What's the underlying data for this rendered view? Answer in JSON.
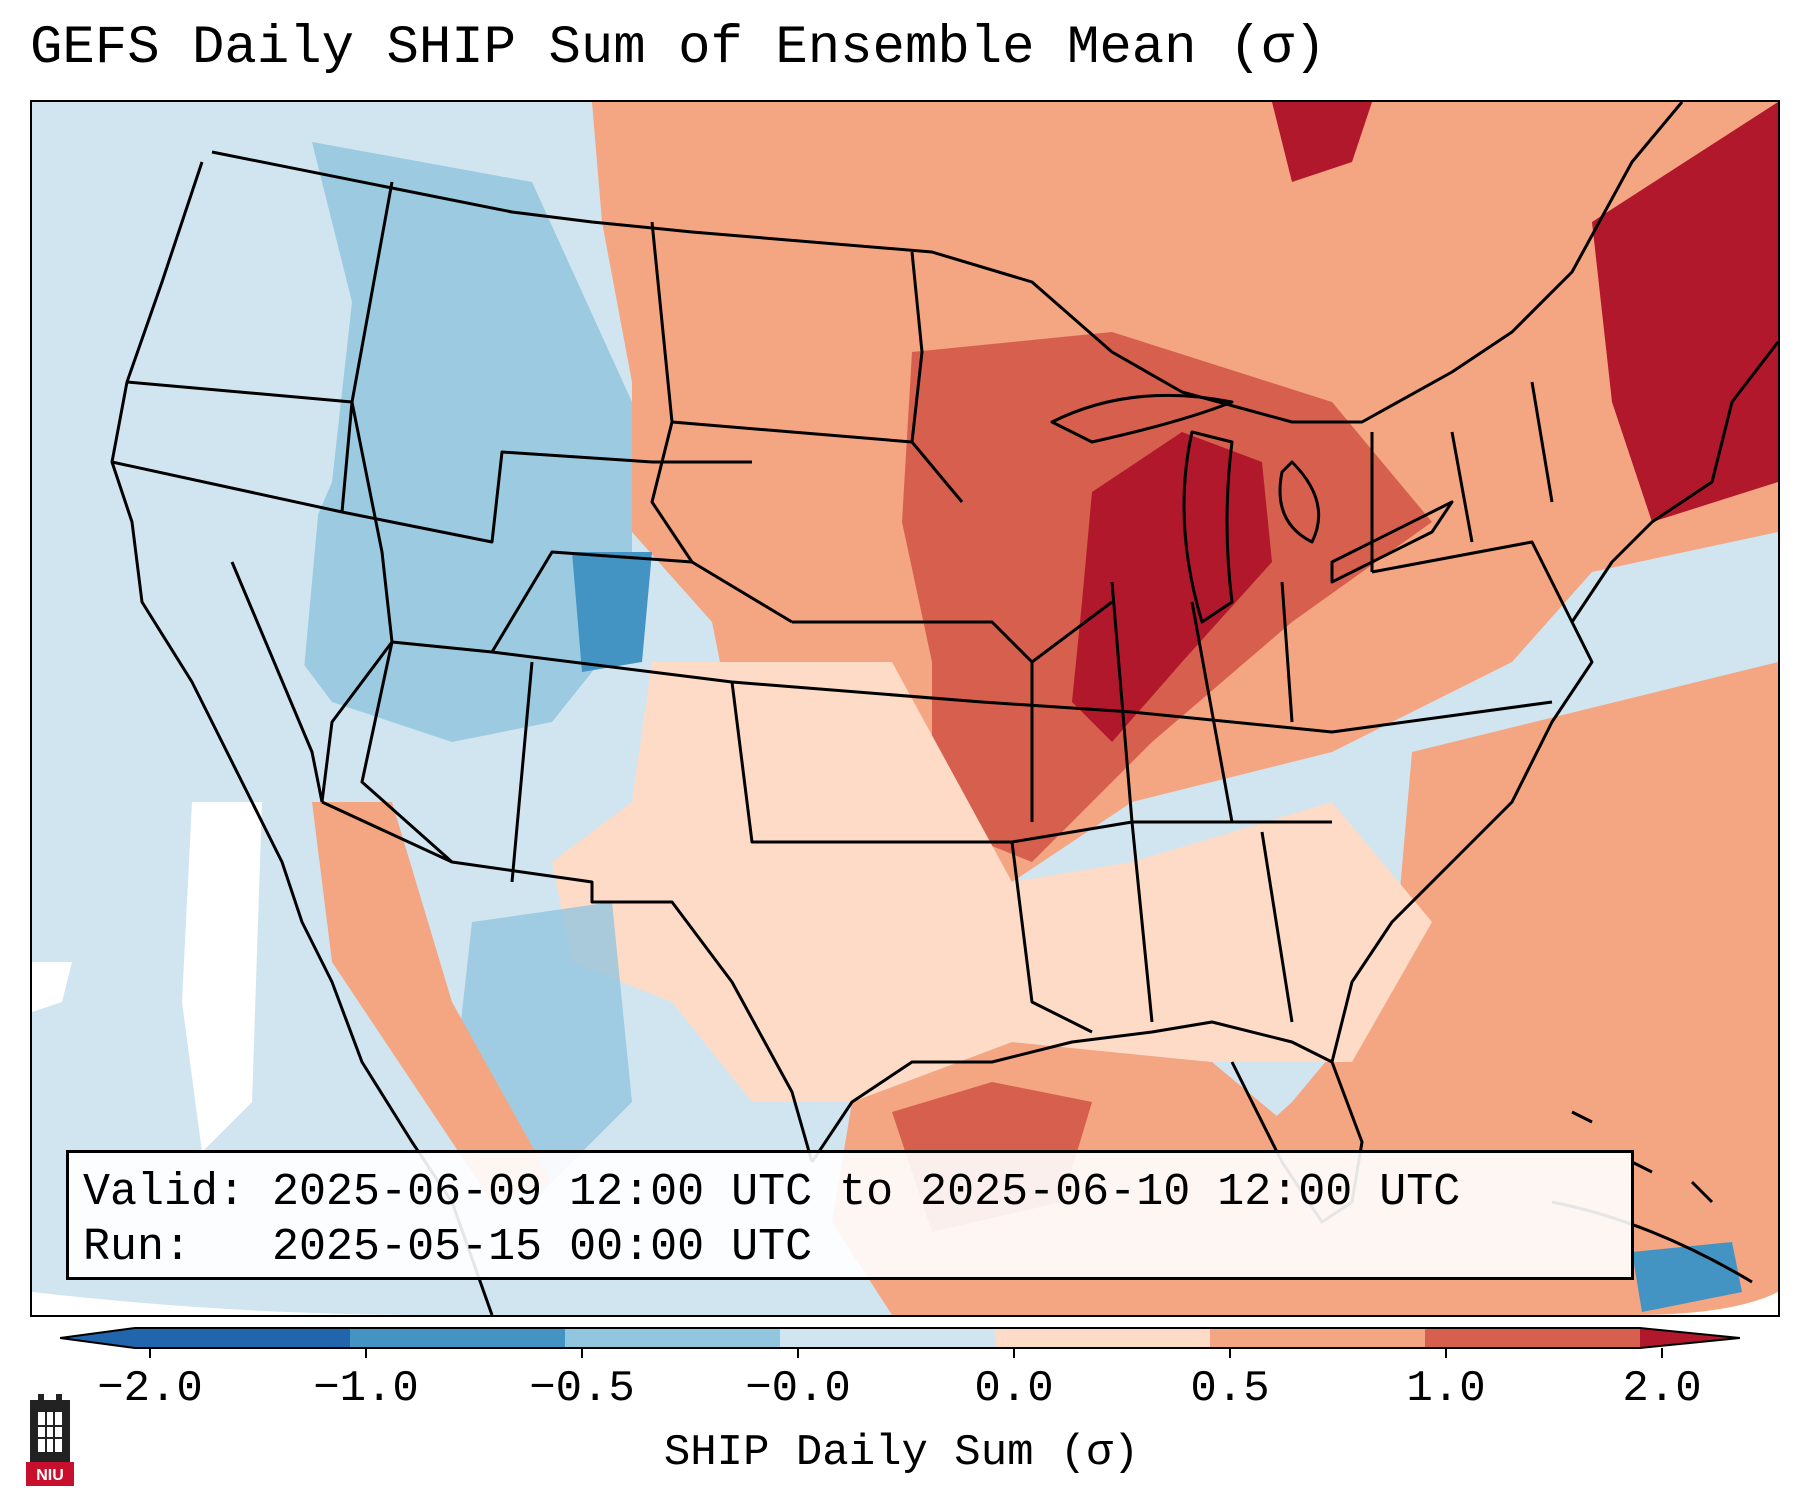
{
  "title": "GEFS Daily SHIP Sum of Ensemble Mean (σ)",
  "info": {
    "valid_label": "Valid:",
    "valid_value": "2025-06-09 12:00 UTC to 2025-06-10 12:00 UTC",
    "run_label": "Run:",
    "run_value": "2025-05-15 00:00 UTC"
  },
  "colorbar": {
    "label": "SHIP Daily Sum (σ)",
    "ticks": [
      "−2.0",
      "−1.0",
      "−0.5",
      "−0.0",
      "0.0",
      "0.5",
      "1.0",
      "2.0"
    ],
    "colors": [
      "#2166ac",
      "#4393c3",
      "#92c5de",
      "#d1e5f0",
      "#fddbc7",
      "#f4a582",
      "#d6604d",
      "#b2182b"
    ]
  },
  "logo": {
    "text": "NIU",
    "color": "#c8102e"
  }
}
